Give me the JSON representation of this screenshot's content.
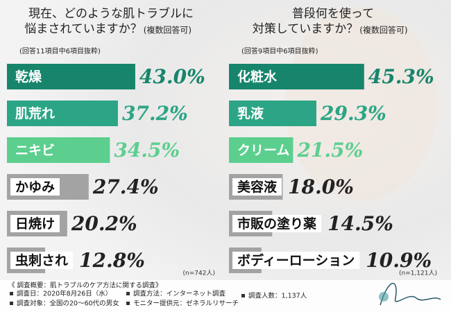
{
  "chart_data": [
    {
      "type": "bar",
      "title": [
        "現在、どのような肌トラブルに",
        "悩まされていますか？"
      ],
      "title_note": "(複数回答可)",
      "subtitle": "(回答11項目中6項目抜粋)",
      "categories": [
        "乾燥",
        "肌荒れ",
        "ニキビ",
        "かゆみ",
        "日焼け",
        "虫刺され"
      ],
      "values": [
        43.0,
        37.2,
        34.5,
        27.4,
        20.2,
        12.8
      ],
      "value_labels": [
        "43.0%",
        "37.2%",
        "34.5%",
        "27.4%",
        "20.2%",
        "12.8%"
      ],
      "colors": [
        "#17856c",
        "#2ba585",
        "#5ccf8f",
        "#a3a3a3",
        "#a3a3a3",
        "#a3a3a3"
      ],
      "value_colors": [
        "#17856c",
        "#2ba585",
        "#5ccf8f",
        "#222222",
        "#222222",
        "#222222"
      ],
      "note": "(n=742人)"
    },
    {
      "type": "bar",
      "title": [
        "普段何を使って",
        "対策していますか？"
      ],
      "title_note": "(複数回答可)",
      "subtitle": "(回答9項目中6項目抜粋)",
      "categories": [
        "化粧水",
        "乳液",
        "クリーム",
        "美容液",
        "市販の塗り薬",
        "ボディーローション"
      ],
      "values": [
        45.3,
        29.3,
        21.5,
        18.0,
        14.5,
        10.9
      ],
      "value_labels": [
        "45.3%",
        "29.3%",
        "21.5%",
        "18.0%",
        "14.5%",
        "10.9%"
      ],
      "colors": [
        "#17856c",
        "#2ba585",
        "#5ccf8f",
        "#a3a3a3",
        "#a3a3a3",
        "#a3a3a3"
      ],
      "value_colors": [
        "#17856c",
        "#2ba585",
        "#5ccf8f",
        "#222222",
        "#222222",
        "#222222"
      ],
      "note": "(n=1,121人)"
    }
  ],
  "footer": {
    "heading": "《 調査概要：肌トラブルのケア方法に関する調査》",
    "items": [
      "調査日：2020年8月26日（水）",
      "調査方法：インターネット調査",
      "調査人数：1,137人",
      "調査対象：全国の20〜60代の男女",
      "モニター提供元：ゼネラルリサーチ"
    ]
  }
}
